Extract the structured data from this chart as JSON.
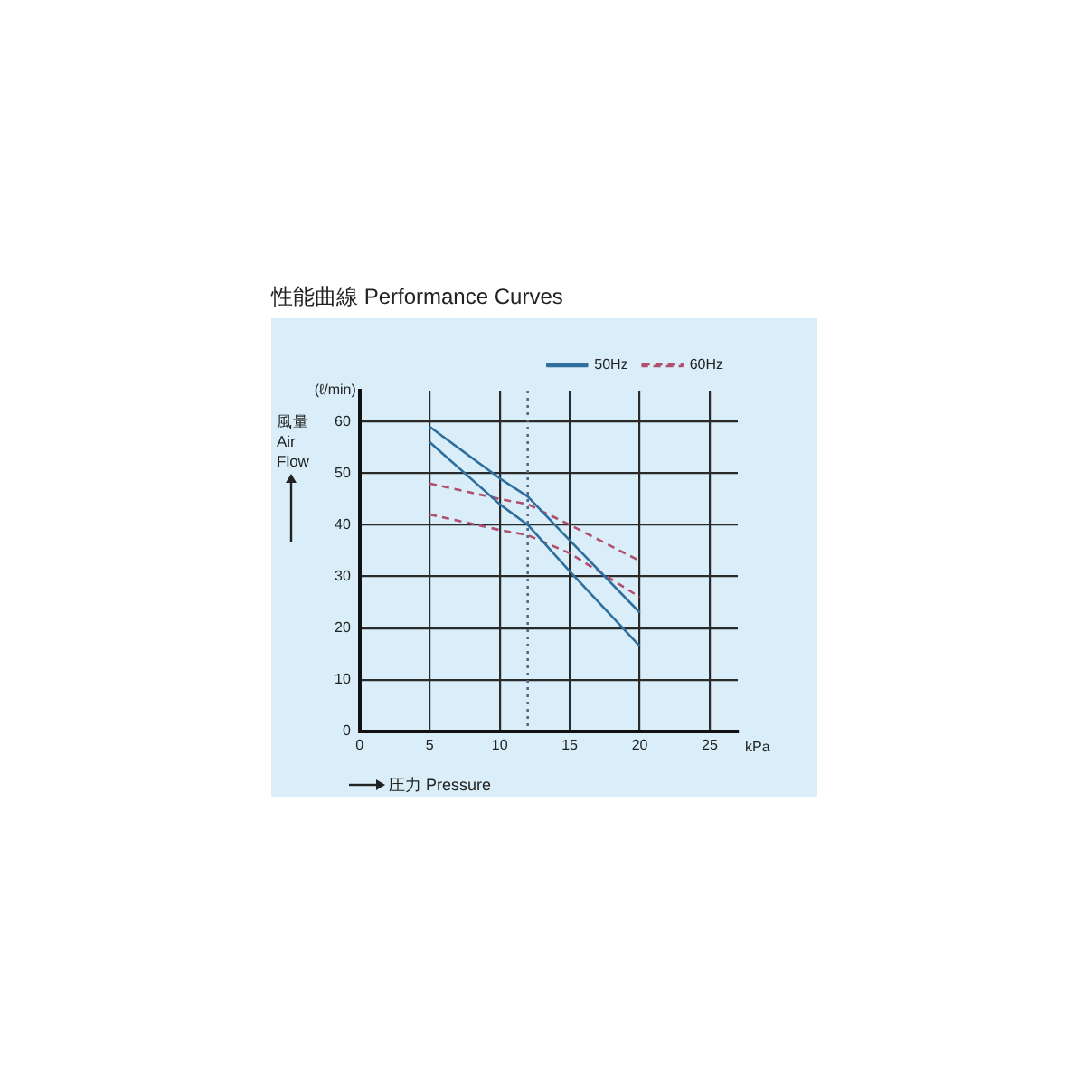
{
  "chart_data": {
    "type": "line",
    "title": "性能曲線 Performance Curves",
    "xlabel": "圧力 Pressure",
    "ylabel": "風量 Air Flow",
    "annotations": [
      "(ℓ/min)",
      "kPa"
    ],
    "x": [
      5,
      10,
      12,
      15,
      20
    ],
    "series": [
      {
        "name": "50Hz",
        "color": "#2e6f9e",
        "line_style": "solid",
        "values": [
          59,
          49,
          45.5,
          37,
          23
        ]
      },
      {
        "color": "#2e6f9e",
        "line_style": "solid",
        "values": [
          56,
          44,
          40,
          31,
          16.5
        ]
      },
      {
        "name": "60Hz",
        "color": "#b0506e",
        "line_style": "dashed",
        "values": [
          48,
          45,
          44,
          40,
          33
        ]
      },
      {
        "color": "#b0506e",
        "line_style": "dashed",
        "values": [
          42,
          39,
          38,
          34.5,
          26
        ]
      }
    ],
    "xlim": [
      0,
      27
    ],
    "xticks": [
      0,
      5,
      10,
      15,
      20,
      25
    ],
    "ylim": [
      0,
      66
    ],
    "yticks": [
      0,
      10,
      20,
      30,
      40,
      50,
      60
    ],
    "ref_lines": [
      {
        "axis": "x",
        "value": 12,
        "line_style": "dotted",
        "color": "#556688"
      }
    ],
    "grid": true,
    "legend": "top right",
    "marker": "none"
  }
}
